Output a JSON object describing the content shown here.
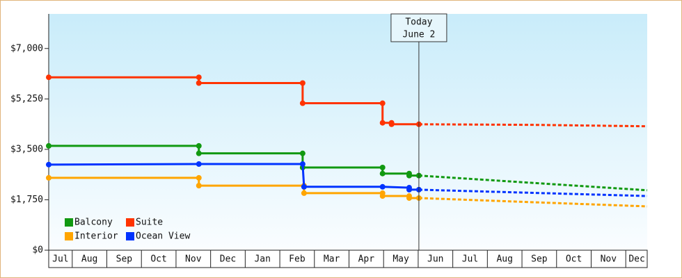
{
  "chart_data": {
    "type": "step-line",
    "xlim": [
      0.32,
      17.62
    ],
    "ylim": [
      0,
      8200
    ],
    "yticks": [
      {
        "value": 0,
        "label": "$0"
      },
      {
        "value": 1750,
        "label": "$1,750"
      },
      {
        "value": 3500,
        "label": "$3,500"
      },
      {
        "value": 5250,
        "label": "$5,250"
      },
      {
        "value": 7000,
        "label": "$7,000"
      }
    ],
    "xticks": [
      {
        "value": 0.66,
        "label": "Jul"
      },
      {
        "value": 1.5,
        "label": "Aug"
      },
      {
        "value": 2.5,
        "label": "Sep"
      },
      {
        "value": 3.5,
        "label": "Oct"
      },
      {
        "value": 4.5,
        "label": "Nov"
      },
      {
        "value": 5.5,
        "label": "Dec"
      },
      {
        "value": 6.5,
        "label": "Jan"
      },
      {
        "value": 7.5,
        "label": "Feb"
      },
      {
        "value": 8.5,
        "label": "Mar"
      },
      {
        "value": 9.5,
        "label": "Apr"
      },
      {
        "value": 10.5,
        "label": "May"
      },
      {
        "value": 11.5,
        "label": "Jun"
      },
      {
        "value": 12.5,
        "label": "Jul"
      },
      {
        "value": 13.5,
        "label": "Aug"
      },
      {
        "value": 14.5,
        "label": "Sep"
      },
      {
        "value": 15.5,
        "label": "Oct"
      },
      {
        "value": 16.5,
        "label": "Nov"
      },
      {
        "value": 17.32,
        "label": "Dec"
      }
    ],
    "today": {
      "x": 11.02,
      "label": "Today",
      "date": "June 2"
    },
    "series": [
      {
        "name": "Balcony",
        "color": "#119911",
        "x": [
          0.32,
          4.66,
          4.66,
          7.66,
          7.66,
          9.97,
          9.97,
          10.74,
          10.74,
          11.02
        ],
        "values": [
          3620,
          3620,
          3360,
          3360,
          2870,
          2870,
          2660,
          2660,
          2590,
          2590
        ],
        "projection_x": [
          11.02,
          17.62
        ],
        "projection_values": [
          2590,
          2080
        ]
      },
      {
        "name": "Suite",
        "color": "#ff3300",
        "x": [
          0.32,
          4.66,
          4.66,
          7.66,
          7.66,
          9.97,
          9.97,
          10.23,
          10.23,
          11.02
        ],
        "values": [
          6000,
          6000,
          5800,
          5800,
          5100,
          5100,
          4420,
          4420,
          4370,
          4370
        ],
        "projection_x": [
          11.02,
          14.3,
          17.62
        ],
        "projection_values": [
          4370,
          4350,
          4300
        ]
      },
      {
        "name": "Interior",
        "color": "#ffa500",
        "x": [
          0.32,
          4.66,
          4.66,
          7.7,
          7.7,
          9.97,
          9.97,
          10.74,
          10.74,
          11.02
        ],
        "values": [
          2510,
          2510,
          2240,
          2240,
          1980,
          1980,
          1880,
          1880,
          1810,
          1810
        ],
        "projection_x": [
          11.02,
          17.62
        ],
        "projection_values": [
          1810,
          1520
        ]
      },
      {
        "name": "Ocean View",
        "color": "#0033ff",
        "x": [
          0.32,
          4.66,
          7.66,
          7.7,
          9.97,
          10.74,
          10.74,
          11.02
        ],
        "values": [
          2970,
          2990,
          2990,
          2200,
          2200,
          2170,
          2100,
          2100
        ],
        "projection_x": [
          11.02,
          17.62
        ],
        "projection_values": [
          2100,
          1880
        ]
      }
    ]
  }
}
